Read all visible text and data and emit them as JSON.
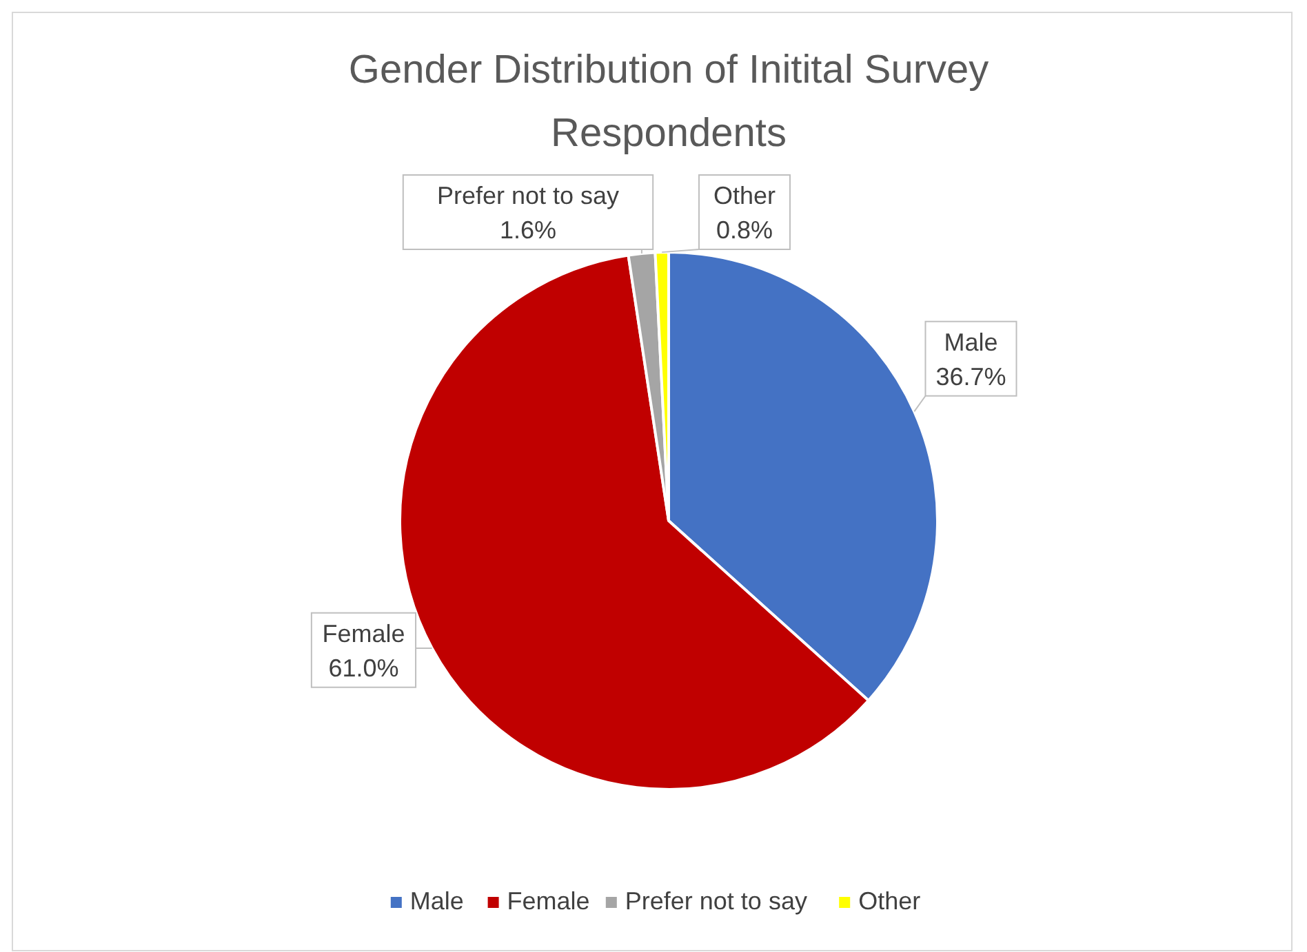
{
  "chart_data": {
    "type": "pie",
    "title": "Gender Distribution of Initital Survey Respondents",
    "categories": [
      "Male",
      "Female",
      "Prefer not to say",
      "Other"
    ],
    "values": [
      36.7,
      61.0,
      1.6,
      0.8
    ],
    "colors": [
      "#4472c4",
      "#c00000",
      "#a5a5a5",
      "#ffff00"
    ],
    "value_labels": [
      "36.7%",
      "61.0%",
      "1.6%",
      "0.8%"
    ],
    "legend": "bottom"
  }
}
